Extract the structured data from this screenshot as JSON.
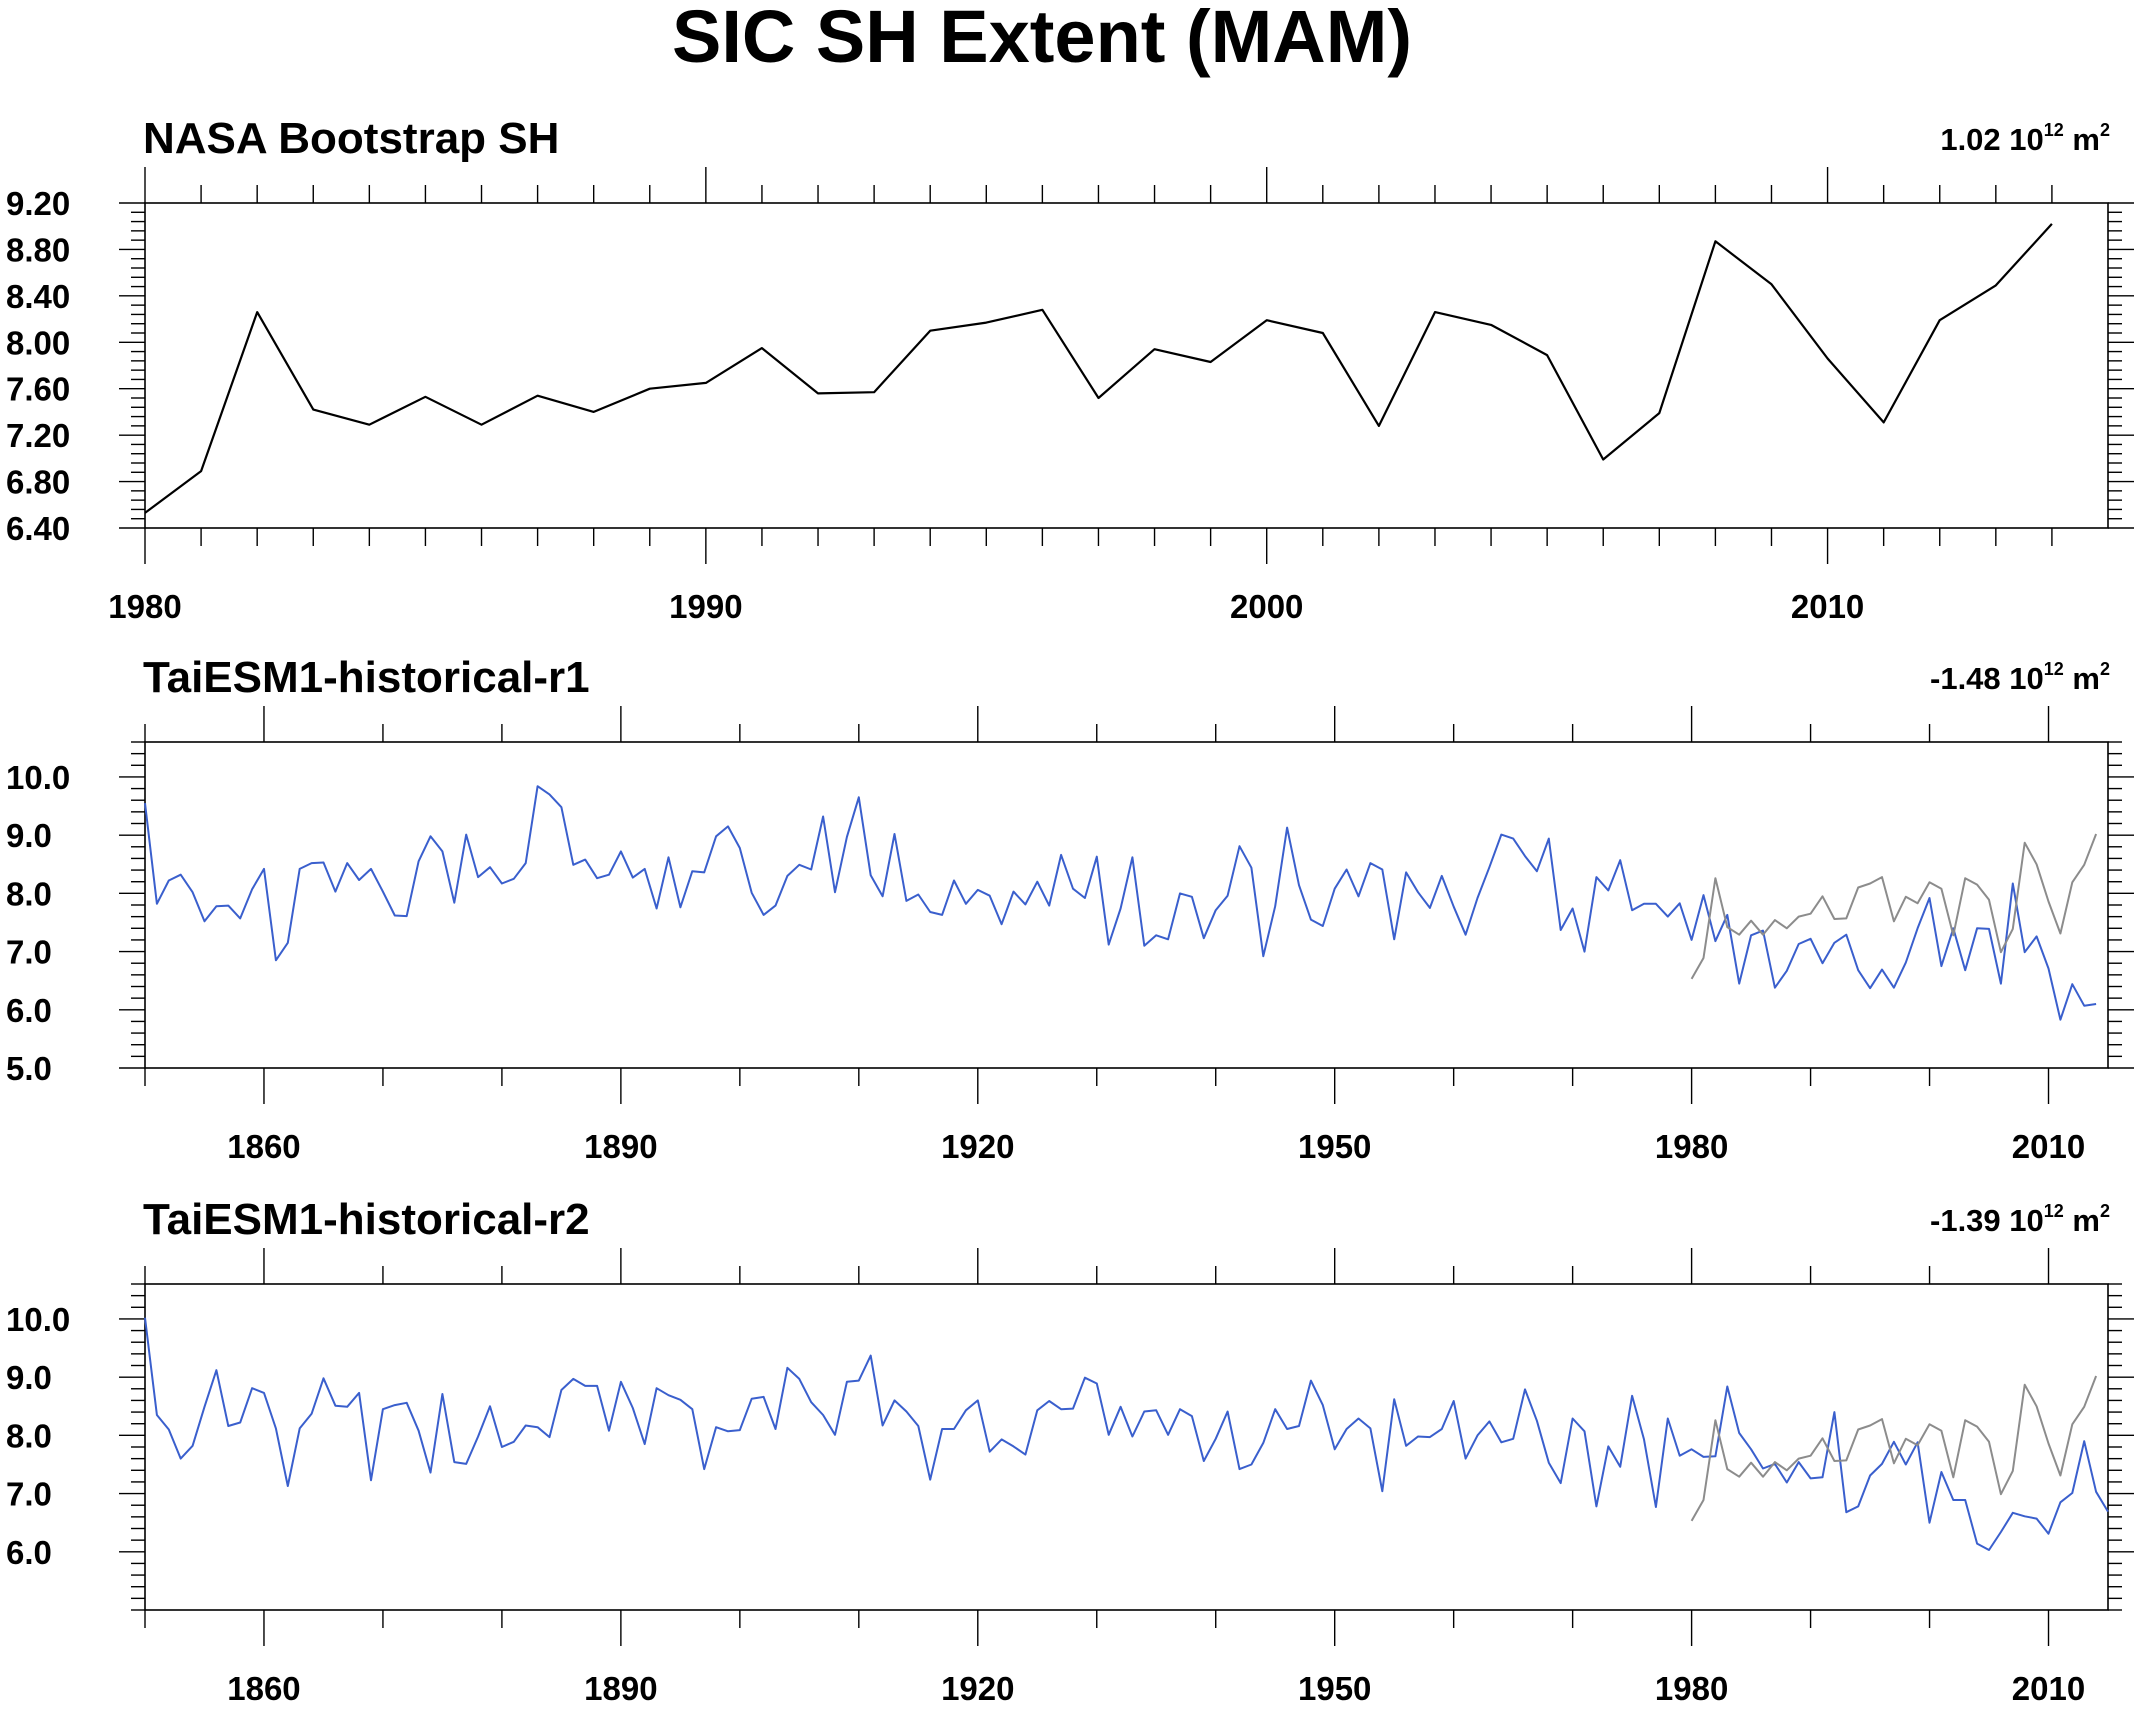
{
  "title": "SIC SH Extent (MAM)",
  "colors": {
    "obs": "#000000",
    "model": "#3a5fcd",
    "obs_overlay": "#8c8c8c"
  },
  "chart_data": [
    {
      "type": "line",
      "title": "NASA Bootstrap SH",
      "trend": {
        "value": "1.02",
        "base": "10",
        "exp": "12",
        "unit": "m",
        "unit_exp": "2"
      },
      "xlim": [
        1980,
        2014
      ],
      "ylim": [
        6.4,
        9.2
      ],
      "yticks": [
        6.4,
        6.8,
        7.2,
        7.6,
        8.0,
        8.4,
        8.8,
        9.2
      ],
      "ytick_labels": [
        "6.40",
        "6.80",
        "7.20",
        "7.60",
        "8.00",
        "8.40",
        "8.80",
        "9.20"
      ],
      "xticks": [
        1980,
        1990,
        2000,
        2010
      ],
      "xtick_labels": [
        "1980",
        "1990",
        "2000",
        "2010"
      ],
      "xminor": 1,
      "series": [
        {
          "color": "obs",
          "x_start": 1980,
          "values": [
            6.53,
            6.89,
            8.26,
            7.42,
            7.29,
            7.53,
            7.29,
            7.54,
            7.4,
            7.6,
            7.65,
            7.95,
            7.56,
            7.57,
            8.1,
            8.17,
            8.28,
            7.52,
            7.94,
            7.83,
            8.19,
            8.08,
            7.28,
            8.26,
            8.15,
            7.89,
            6.99,
            7.39,
            8.87,
            8.5,
            7.86,
            7.31,
            8.19,
            8.49,
            9.02
          ]
        }
      ]
    },
    {
      "type": "line",
      "title": "TaiESM1-historical-r1",
      "trend": {
        "value": "-1.48",
        "base": "10",
        "exp": "12",
        "unit": "m",
        "unit_exp": "2"
      },
      "xlim": [
        1850,
        2014
      ],
      "ylim": [
        5.0,
        10.6
      ],
      "yticks": [
        5.0,
        6.0,
        7.0,
        8.0,
        9.0,
        10.0
      ],
      "ytick_labels": [
        "5.0",
        "6.0",
        "7.0",
        "8.0",
        "9.0",
        "10.0"
      ],
      "xticks": [
        1860,
        1890,
        1920,
        1950,
        1980,
        2010
      ],
      "xtick_labels": [
        "1860",
        "1890",
        "1920",
        "1950",
        "1980",
        "2010"
      ],
      "xminor": 10,
      "series": [
        {
          "color": "model",
          "x_start": 1850,
          "values": [
            9.55,
            7.82,
            8.22,
            8.32,
            8.02,
            7.52,
            7.78,
            7.79,
            7.57,
            8.07,
            8.42,
            6.85,
            7.15,
            8.42,
            8.52,
            8.53,
            8.03,
            8.52,
            8.23,
            8.42,
            8.03,
            7.62,
            7.61,
            8.55,
            8.98,
            8.72,
            7.84,
            9.01,
            8.28,
            8.45,
            8.17,
            8.25,
            8.52,
            9.84,
            9.7,
            9.48,
            8.49,
            8.58,
            8.26,
            8.32,
            8.72,
            8.27,
            8.42,
            7.74,
            8.62,
            7.76,
            8.38,
            8.36,
            8.98,
            9.15,
            8.78,
            8.01,
            7.63,
            7.79,
            8.3,
            8.49,
            8.41,
            9.32,
            8.02,
            8.97,
            9.65,
            8.31,
            7.95,
            9.02,
            7.87,
            7.98,
            7.68,
            7.63,
            8.22,
            7.82,
            8.06,
            7.96,
            7.47,
            8.03,
            7.81,
            8.2,
            7.79,
            8.66,
            8.08,
            7.92,
            8.63,
            7.12,
            7.74,
            8.62,
            7.1,
            7.28,
            7.21,
            8.0,
            7.94,
            7.23,
            7.71,
            7.96,
            8.81,
            8.44,
            6.92,
            7.78,
            9.13,
            8.14,
            7.55,
            7.44,
            8.08,
            8.41,
            7.95,
            8.52,
            8.41,
            7.21,
            8.36,
            8.02,
            7.75,
            8.3,
            7.77,
            7.29,
            7.92,
            8.45,
            9.01,
            8.94,
            8.64,
            8.38,
            8.94,
            7.37,
            7.74,
            7.0,
            8.28,
            8.05,
            8.57,
            7.71,
            7.82,
            7.82,
            7.6,
            7.83,
            7.2,
            7.97,
            7.18,
            7.63,
            6.45,
            7.28,
            7.36,
            6.38,
            6.67,
            7.13,
            7.22,
            6.8,
            7.15,
            7.29,
            6.68,
            6.37,
            6.69,
            6.38,
            6.81,
            7.4,
            7.92,
            6.75,
            7.4,
            6.68,
            7.4,
            7.39,
            6.45,
            8.17,
            6.99,
            7.26,
            6.71,
            5.83,
            6.44,
            6.07,
            6.1
          ]
        },
        {
          "color": "obs_overlay",
          "x_start": 1980,
          "values": [
            6.53,
            6.89,
            8.26,
            7.42,
            7.29,
            7.53,
            7.29,
            7.54,
            7.4,
            7.6,
            7.65,
            7.95,
            7.56,
            7.57,
            8.1,
            8.17,
            8.28,
            7.52,
            7.94,
            7.83,
            8.19,
            8.08,
            7.28,
            8.26,
            8.15,
            7.89,
            6.99,
            7.39,
            8.87,
            8.5,
            7.86,
            7.31,
            8.19,
            8.49,
            9.02
          ]
        }
      ]
    },
    {
      "type": "line",
      "title": "TaiESM1-historical-r2",
      "trend": {
        "value": "-1.39",
        "base": "10",
        "exp": "12",
        "unit": "m",
        "unit_exp": "2"
      },
      "xlim": [
        1850,
        2014
      ],
      "ylim": [
        5.0,
        10.6
      ],
      "yticks": [
        6.0,
        7.0,
        8.0,
        9.0,
        10.0
      ],
      "ytick_labels": [
        "6.0",
        "7.0",
        "8.0",
        "9.0",
        "10.0"
      ],
      "xticks": [
        1860,
        1890,
        1920,
        1950,
        1980,
        2010
      ],
      "xtick_labels": [
        "1860",
        "1890",
        "1920",
        "1950",
        "1980",
        "2010"
      ],
      "xminor": 10,
      "series": [
        {
          "color": "model",
          "x_start": 1850,
          "values": [
            10.02,
            8.35,
            8.1,
            7.6,
            7.82,
            8.49,
            9.12,
            8.16,
            8.22,
            8.81,
            8.73,
            8.12,
            7.13,
            8.12,
            8.37,
            8.98,
            8.51,
            8.49,
            8.73,
            7.23,
            8.45,
            8.52,
            8.56,
            8.08,
            7.36,
            8.71,
            7.54,
            7.51,
            7.98,
            8.5,
            7.8,
            7.89,
            8.17,
            8.14,
            7.97,
            8.78,
            8.97,
            8.85,
            8.85,
            8.08,
            8.92,
            8.47,
            7.85,
            8.81,
            8.69,
            8.61,
            8.45,
            7.42,
            8.14,
            8.07,
            8.09,
            8.63,
            8.66,
            8.11,
            9.16,
            8.97,
            8.57,
            8.35,
            8.01,
            8.92,
            8.94,
            9.37,
            8.17,
            8.6,
            8.41,
            8.16,
            7.24,
            8.11,
            8.11,
            8.43,
            8.6,
            7.72,
            7.93,
            7.81,
            7.67,
            8.43,
            8.59,
            8.45,
            8.46,
            8.99,
            8.89,
            8.01,
            8.49,
            7.98,
            8.41,
            8.43,
            8.01,
            8.45,
            8.33,
            7.56,
            7.94,
            8.41,
            7.42,
            7.5,
            7.87,
            8.45,
            8.11,
            8.16,
            8.94,
            8.52,
            7.76,
            8.11,
            8.29,
            8.12,
            7.04,
            8.62,
            7.82,
            7.98,
            7.97,
            8.11,
            8.59,
            7.6,
            8.0,
            8.24,
            7.88,
            7.94,
            8.79,
            8.25,
            7.53,
            7.18,
            8.29,
            8.07,
            6.78,
            7.81,
            7.46,
            8.68,
            7.93,
            6.77,
            8.29,
            7.65,
            7.76,
            7.63,
            7.64,
            8.84,
            8.04,
            7.76,
            7.43,
            7.51,
            7.19,
            7.54,
            7.26,
            7.28,
            8.4,
            6.68,
            6.78,
            7.31,
            7.51,
            7.89,
            7.5,
            7.88,
            6.5,
            7.37,
            6.89,
            6.89,
            6.14,
            6.03,
            6.34,
            6.67,
            6.61,
            6.57,
            6.31,
            6.85,
            7.01,
            7.9,
            7.03,
            6.69
          ]
        },
        {
          "color": "obs_overlay",
          "x_start": 1980,
          "values": [
            6.53,
            6.89,
            8.26,
            7.42,
            7.29,
            7.53,
            7.29,
            7.54,
            7.4,
            7.6,
            7.65,
            7.95,
            7.56,
            7.57,
            8.1,
            8.17,
            8.28,
            7.52,
            7.94,
            7.83,
            8.19,
            8.08,
            7.28,
            8.26,
            8.15,
            7.89,
            6.99,
            7.39,
            8.87,
            8.5,
            7.86,
            7.31,
            8.19,
            8.49,
            9.02
          ]
        }
      ]
    }
  ]
}
